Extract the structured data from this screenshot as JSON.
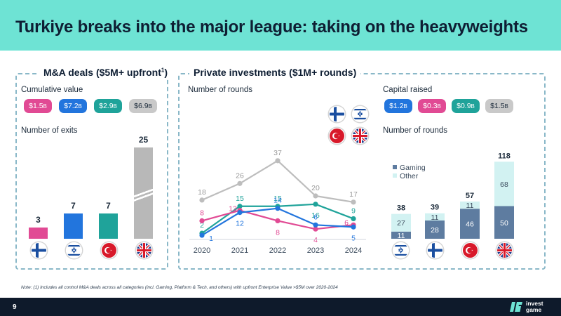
{
  "header": {
    "title": "Turkiye breaks into the major league: taking on the heavyweights"
  },
  "ma": {
    "title": "M&A deals ($5M+ upfront",
    "title_sup": "1",
    "title_close": ")",
    "cumulative_label": "Cumulative value",
    "exits_label": "Number of exits",
    "pills": [
      {
        "value": "$1.5",
        "unit": "B",
        "color": "#e14a94"
      },
      {
        "value": "$7.2",
        "unit": "B",
        "color": "#2275dd"
      },
      {
        "value": "$2.9",
        "unit": "B",
        "color": "#1fa39a"
      },
      {
        "value": "$6.9",
        "unit": "B",
        "color": "#c9c9c9"
      }
    ],
    "bars": [
      {
        "label": "3",
        "value": 3,
        "color": "#e14a94",
        "flag": "finland"
      },
      {
        "label": "7",
        "value": 7,
        "color": "#2275dd",
        "flag": "israel"
      },
      {
        "label": "7",
        "value": 7,
        "color": "#1fa39a",
        "flag": "turkey"
      },
      {
        "label": "25",
        "value": 25,
        "color": "#b8b8b8",
        "flag": "uk"
      }
    ]
  },
  "pi": {
    "title": "Private investments ($1M+ rounds)",
    "rounds_label": "Number of rounds",
    "capital_label": "Capital raised",
    "rounds_label2": "Number of rounds",
    "pills": [
      {
        "value": "$1.2",
        "unit": "B",
        "color": "#2275dd"
      },
      {
        "value": "$0.3",
        "unit": "B",
        "color": "#e14a94"
      },
      {
        "value": "$0.9",
        "unit": "B",
        "color": "#1fa39a"
      },
      {
        "value": "$1.5",
        "unit": "B",
        "color": "#c9c9c9"
      }
    ]
  },
  "chart_data": [
    {
      "type": "bar",
      "title": "Number of exits",
      "categories": [
        "Finland",
        "Israel",
        "Turkiye",
        "UK"
      ],
      "values": [
        3,
        7,
        7,
        25
      ]
    },
    {
      "type": "line",
      "title": "Number of rounds",
      "x": [
        "2020",
        "2021",
        "2022",
        "2023",
        "2024"
      ],
      "series": [
        {
          "name": "UK",
          "color": "#bdbdbd",
          "values": [
            18,
            26,
            37,
            20,
            17
          ],
          "labels": [
            "18",
            "26",
            "37",
            "20",
            "17"
          ]
        },
        {
          "name": "Turkiye",
          "color": "#1fa39a",
          "values": [
            2,
            15,
            15,
            16,
            9
          ],
          "labels": [
            "2",
            "15",
            "15",
            "16",
            "9"
          ]
        },
        {
          "name": "Finland",
          "color": "#e14a94",
          "values": [
            8,
            13,
            8,
            4,
            6
          ],
          "labels": [
            "8",
            "13",
            "8",
            "4",
            "6"
          ]
        },
        {
          "name": "Israel",
          "color": "#2275dd",
          "values": [
            1,
            12,
            14,
            6,
            5
          ],
          "labels": [
            "1",
            "12",
            "14",
            "6",
            "5"
          ]
        }
      ],
      "ylim": [
        0,
        40
      ]
    },
    {
      "type": "bar",
      "title": "Number of rounds",
      "stacked": true,
      "categories": [
        "Israel",
        "Finland",
        "Turkiye",
        "UK"
      ],
      "series": [
        {
          "name": "Gaming",
          "color": "#5e7ca0",
          "values": [
            11,
            28,
            46,
            50
          ]
        },
        {
          "name": "Other",
          "color": "#d2f2f2",
          "values": [
            27,
            11,
            11,
            68
          ]
        }
      ],
      "totals": [
        "38",
        "39",
        "57",
        "118"
      ],
      "legend": [
        "Gaming",
        "Other"
      ]
    }
  ],
  "note": "Note: (1) Includes all control M&A deals across all categories (incl. Gaming, Platform & Tech, and others) with upfront Enterprise Value >$5M over 2020-2024",
  "footer": {
    "page": "9",
    "logo_line1": "invest",
    "logo_line2": "game"
  }
}
